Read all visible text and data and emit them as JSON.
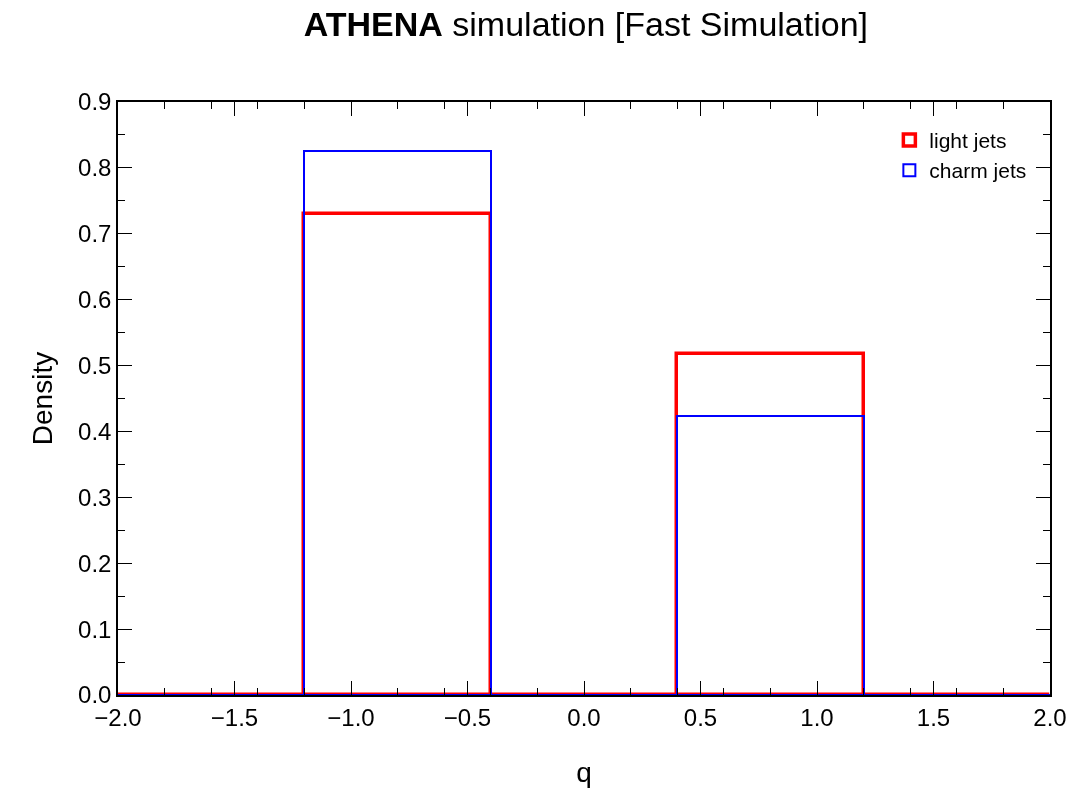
{
  "chart_data": {
    "type": "histogram",
    "title": "ATHENA simulation [Fast Simulation]",
    "xlabel": "q",
    "ylabel": "Density",
    "bins": [
      -2,
      -1.2,
      -0.4,
      0.4,
      1.2,
      2
    ],
    "series": [
      {
        "name": "light jets",
        "color": "#ff0000",
        "values": [
          0,
          0.73,
          0,
          0.517,
          0
        ]
      },
      {
        "name": "charm jets",
        "color": "#0000ff",
        "values": [
          0,
          0.825,
          0,
          0.423,
          0
        ]
      }
    ],
    "xlim": [
      -2,
      2
    ],
    "xticks": [
      {
        "value": -2,
        "label": "−2.0"
      },
      {
        "value": -1.5,
        "label": "−1.5"
      },
      {
        "value": -1,
        "label": "−1.0"
      },
      {
        "value": -0.5,
        "label": "−0.5"
      },
      {
        "value": 0,
        "label": "0.0"
      },
      {
        "value": 0.5,
        "label": "0.5"
      },
      {
        "value": 1,
        "label": "1.0"
      },
      {
        "value": 1.5,
        "label": "1.5"
      },
      {
        "value": 2,
        "label": "2.0"
      }
    ],
    "ylim": [
      0,
      0.9
    ],
    "yticks": [
      {
        "value": 0,
        "label": "0.0"
      },
      {
        "value": 0.1,
        "label": "0.1"
      },
      {
        "value": 0.2,
        "label": "0.2"
      },
      {
        "value": 0.3,
        "label": "0.3"
      },
      {
        "value": 0.4,
        "label": "0.4"
      },
      {
        "value": 0.5,
        "label": "0.5"
      },
      {
        "value": 0.6,
        "label": "0.6"
      },
      {
        "value": 0.7,
        "label": "0.7"
      },
      {
        "value": 0.8,
        "label": "0.8"
      },
      {
        "value": 0.9,
        "label": "0.9"
      }
    ],
    "grid": false,
    "legend": "top right"
  }
}
